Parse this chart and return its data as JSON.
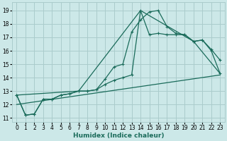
{
  "title": "",
  "xlabel": "Humidex (Indice chaleur)",
  "bg_color": "#cce8e8",
  "grid_color": "#aacccc",
  "line_color": "#1a6b5a",
  "xlim": [
    -0.5,
    23.5
  ],
  "ylim": [
    10.7,
    19.6
  ],
  "xticks": [
    0,
    1,
    2,
    3,
    4,
    5,
    6,
    7,
    8,
    9,
    10,
    11,
    12,
    13,
    14,
    15,
    16,
    17,
    18,
    19,
    20,
    21,
    22,
    23
  ],
  "yticks": [
    11,
    12,
    13,
    14,
    15,
    16,
    17,
    18,
    19
  ],
  "line1_x": [
    0,
    1,
    2,
    3,
    4,
    5,
    6,
    7,
    8,
    9,
    10,
    11,
    12,
    13,
    14,
    15,
    16,
    17,
    18,
    19,
    20,
    21,
    22,
    23
  ],
  "line1_y": [
    12.7,
    11.2,
    11.3,
    12.4,
    12.4,
    12.7,
    12.8,
    13.0,
    13.0,
    13.1,
    13.9,
    14.8,
    15.0,
    17.4,
    18.3,
    18.9,
    19.0,
    17.8,
    17.3,
    17.2,
    16.7,
    16.8,
    16.1,
    15.3
  ],
  "line2_x": [
    0,
    1,
    2,
    3,
    4,
    5,
    6,
    7,
    8,
    9,
    10,
    11,
    12,
    13,
    14,
    15,
    16,
    17,
    18,
    19,
    20,
    21,
    22,
    23
  ],
  "line2_y": [
    12.7,
    11.2,
    11.3,
    12.4,
    12.4,
    12.7,
    12.8,
    13.0,
    13.0,
    13.1,
    13.5,
    13.8,
    14.0,
    14.2,
    19.0,
    17.2,
    17.3,
    17.2,
    17.2,
    17.2,
    16.7,
    16.8,
    16.0,
    14.3
  ],
  "line3_x": [
    0,
    7,
    14,
    20,
    23
  ],
  "line3_y": [
    12.7,
    13.0,
    19.0,
    16.7,
    14.3
  ],
  "line4_x": [
    0,
    23
  ],
  "line4_y": [
    12.0,
    14.2
  ]
}
